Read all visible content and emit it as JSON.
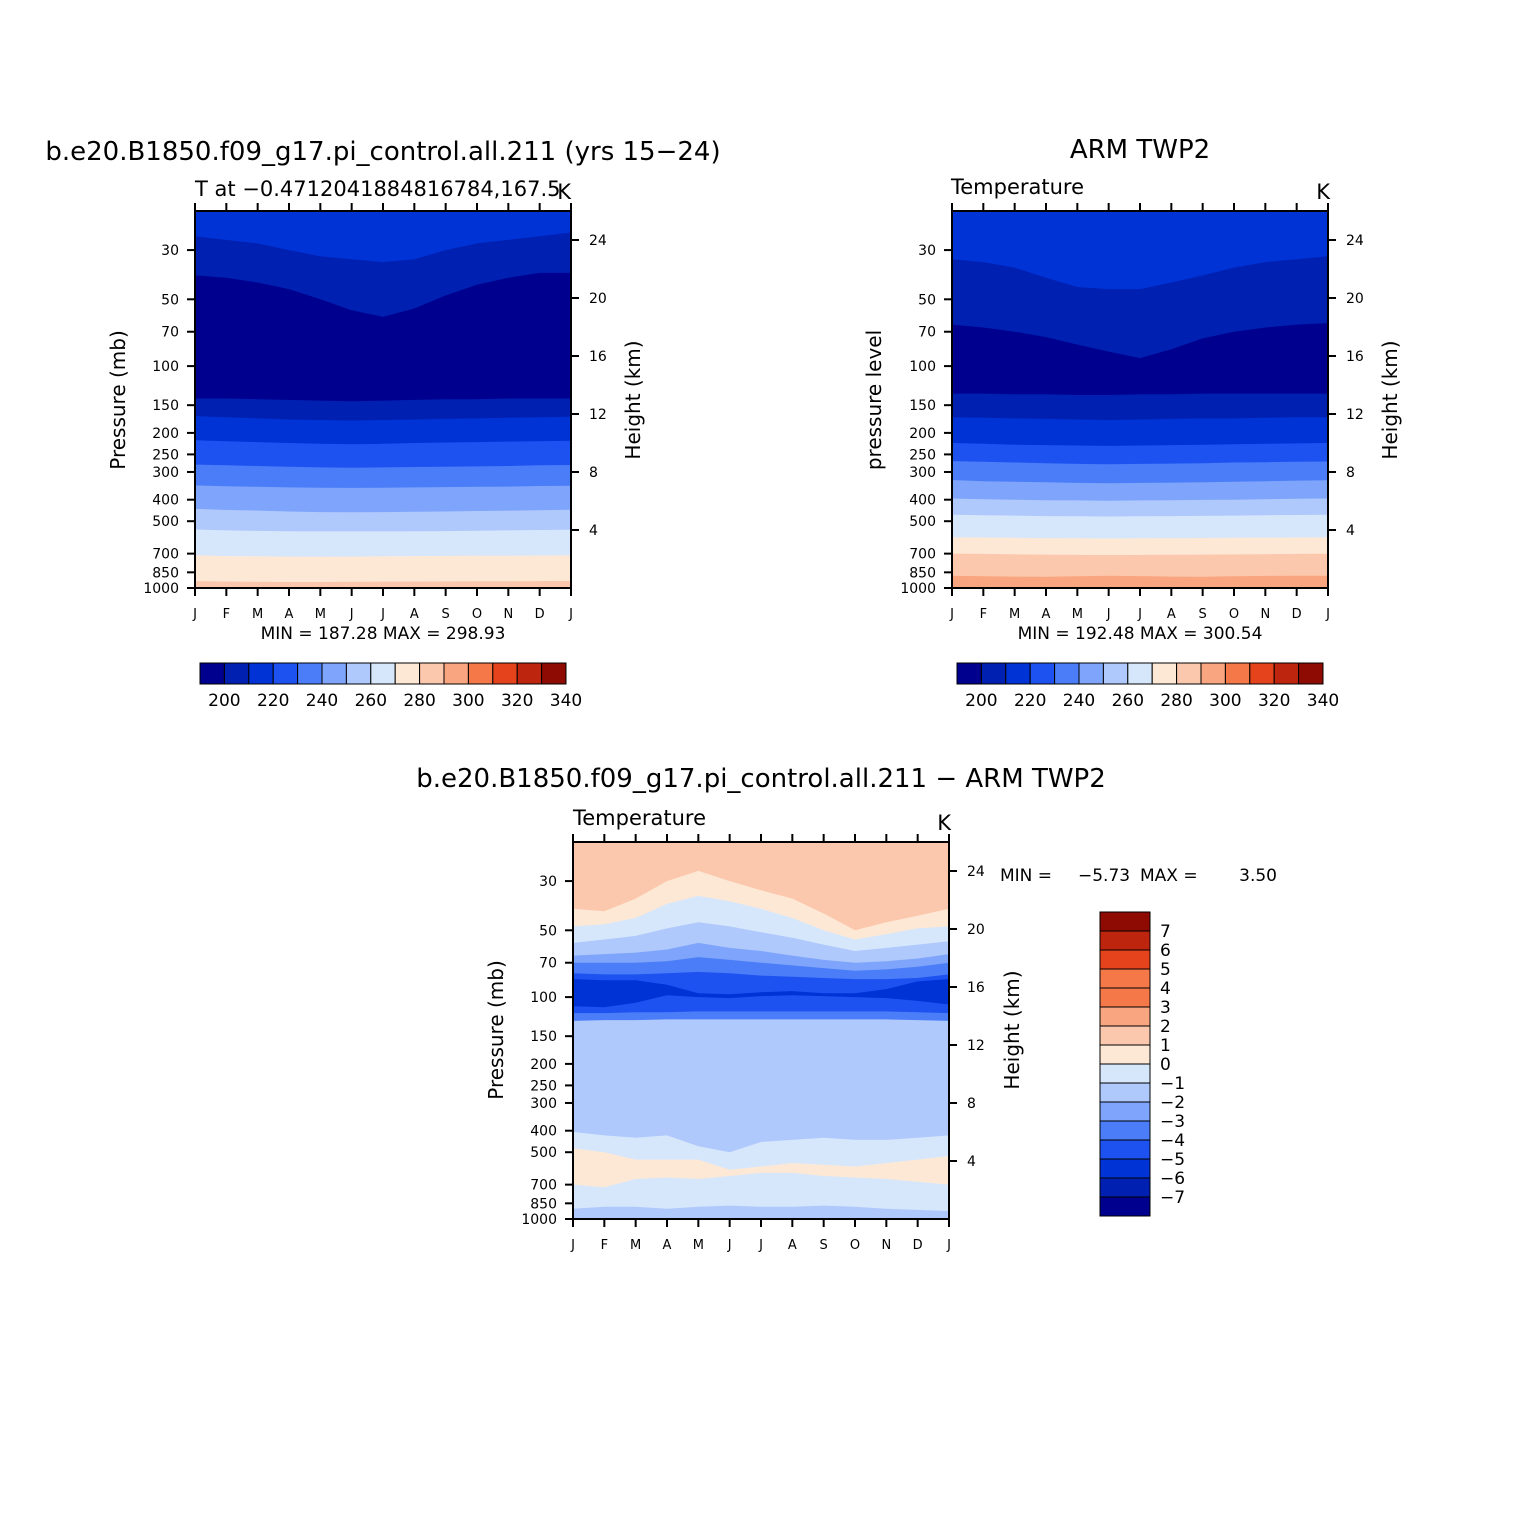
{
  "panels": [
    {
      "id": "model",
      "title": "b.e20.B1850.f09_g17.pi_control.all.211 (yrs 15−24)",
      "subtitle_left": "T at −0.4712041884816784,167.5",
      "subtitle_right": "K",
      "ylabel_left": "Pressure (mb)",
      "ylabel_right": "Height (km)",
      "stats": "MIN =  187.28 MAX =  298.93"
    },
    {
      "id": "obs",
      "title": "ARM TWP2",
      "subtitle_left": "Temperature",
      "subtitle_right": "K",
      "ylabel_left": "pressure level",
      "ylabel_right": "Height (km)",
      "stats": "MIN =  192.48 MAX =  300.54"
    },
    {
      "id": "diff",
      "title": "b.e20.B1850.f09_g17.pi_control.all.211  −  ARM TWP2",
      "subtitle_left": "Temperature",
      "subtitle_right": "K",
      "ylabel_left": "Pressure (mb)",
      "ylabel_right": "Height (km)",
      "stats_min_label": "MIN =",
      "stats_min_value": "−5.73",
      "stats_max_label": "MAX =",
      "stats_max_value": "3.50"
    }
  ],
  "colorbars": {
    "temperature": {
      "labels": [
        "200",
        "220",
        "240",
        "260",
        "280",
        "300",
        "320",
        "340"
      ],
      "colors": [
        "#00008e",
        "#0020b2",
        "#0033d6",
        "#1e52f0",
        "#4a7df7",
        "#7ea5fb",
        "#b0c9fc",
        "#d6e7fb",
        "#fde8d6",
        "#fcc8ad",
        "#f9a57f",
        "#f57849",
        "#e4431b",
        "#bd250e",
        "#8e0b04"
      ]
    },
    "difference": {
      "labels": [
        "7",
        "6",
        "5",
        "4",
        "3",
        "2",
        "1",
        "0",
        "−1",
        "−2",
        "−3",
        "−4",
        "−5",
        "−6",
        "−7"
      ],
      "colors_top_to_bottom": [
        "#8e0b04",
        "#bd250e",
        "#e4431b",
        "#f57849",
        "#f57849",
        "#f9a57f",
        "#fcc8ad",
        "#fde8d6",
        "#d6e7fb",
        "#b0c9fc",
        "#7ea5fb",
        "#4a7df7",
        "#1e52f0",
        "#0033d6",
        "#0020b2",
        "#00008e"
      ]
    }
  },
  "chart_data": [
    {
      "type": "heatmap",
      "title": "b.e20.B1850.f09_g17.pi_control.all.211 (yrs 15−24)",
      "subtitle": "T at −0.4712041884816784,167.5",
      "units": "K",
      "x_ticks": [
        "J",
        "F",
        "M",
        "A",
        "M",
        "J",
        "J",
        "A",
        "S",
        "O",
        "N",
        "D",
        "J"
      ],
      "y_ticks": [
        "30",
        "50",
        "70",
        "100",
        "150",
        "200",
        "250",
        "300",
        "400",
        "500",
        "700",
        "850",
        "1000"
      ],
      "y2_ticks": [
        "24",
        "20",
        "16",
        "12",
        "8",
        "4"
      ],
      "xlabel": "",
      "ylabel": "Pressure (mb)",
      "y2label": "Height (km)",
      "ylim": [
        20,
        1000
      ],
      "y2lim": [
        0,
        26
      ],
      "contour_levels": [
        190,
        200,
        210,
        220,
        230,
        240,
        250,
        260,
        270,
        280,
        290,
        300
      ],
      "min": 187.28,
      "max": 298.93,
      "boundaries_hpa": [
        {
          "upper": "#0033d6",
          "lower": "#0020b2",
          "p": [
            26,
            27,
            28,
            30,
            32,
            33,
            34,
            33,
            30,
            28,
            27,
            26,
            25
          ]
        },
        {
          "upper": "#0020b2",
          "lower": "#00008e",
          "p": [
            39,
            40,
            42,
            45,
            50,
            56,
            60,
            55,
            48,
            43,
            40,
            38,
            38
          ]
        },
        {
          "upper": "#00008e",
          "lower": "#0020b2",
          "p": [
            140,
            140,
            141,
            142,
            143,
            144,
            143,
            142,
            141,
            141,
            140,
            140,
            140
          ]
        },
        {
          "upper": "#0020b2",
          "lower": "#0033d6",
          "p": [
            168,
            170,
            172,
            174,
            175,
            176,
            175,
            174,
            173,
            172,
            171,
            170,
            169
          ]
        },
        {
          "upper": "#0033d6",
          "lower": "#1e52f0",
          "p": [
            216,
            218,
            220,
            222,
            224,
            225,
            224,
            222,
            221,
            220,
            219,
            218,
            217
          ]
        },
        {
          "upper": "#1e52f0",
          "lower": "#4a7df7",
          "p": [
            278,
            280,
            282,
            284,
            286,
            287,
            286,
            285,
            284,
            283,
            282,
            280,
            279
          ]
        },
        {
          "upper": "#4a7df7",
          "lower": "#7ea5fb",
          "p": [
            345,
            348,
            350,
            352,
            353,
            354,
            353,
            352,
            351,
            350,
            349,
            347,
            346
          ]
        },
        {
          "upper": "#7ea5fb",
          "lower": "#b0c9fc",
          "p": [
            440,
            445,
            448,
            452,
            455,
            456,
            455,
            453,
            452,
            450,
            448,
            446,
            444
          ]
        },
        {
          "upper": "#b0c9fc",
          "lower": "#d6e7fb",
          "p": [
            545,
            550,
            553,
            555,
            556,
            556,
            556,
            555,
            554,
            552,
            550,
            548,
            546
          ]
        },
        {
          "upper": "#d6e7fb",
          "lower": "#fde8d6",
          "p": [
            712,
            718,
            720,
            722,
            723,
            722,
            720,
            718,
            717,
            716,
            715,
            714,
            713
          ]
        },
        {
          "upper": "#fde8d6",
          "lower": "#fcc8ad",
          "p": [
            930,
            935,
            938,
            940,
            940,
            938,
            936,
            935,
            934,
            933,
            932,
            931,
            930
          ]
        },
        {
          "upper": "#fcc8ad",
          "lower": "#f9a57f",
          "p": [
            995,
            996,
            997,
            998,
            998,
            998,
            997,
            996,
            996,
            995,
            995,
            995,
            995
          ]
        }
      ]
    },
    {
      "type": "heatmap",
      "title": "ARM TWP2",
      "subtitle": "Temperature",
      "units": "K",
      "x_ticks": [
        "J",
        "F",
        "M",
        "A",
        "M",
        "J",
        "J",
        "A",
        "S",
        "O",
        "N",
        "D",
        "J"
      ],
      "y_ticks": [
        "30",
        "50",
        "70",
        "100",
        "150",
        "200",
        "250",
        "300",
        "400",
        "500",
        "700",
        "850",
        "1000"
      ],
      "y2_ticks": [
        "24",
        "20",
        "16",
        "12",
        "8",
        "4"
      ],
      "xlabel": "",
      "ylabel": "pressure level",
      "y2label": "Height (km)",
      "ylim": [
        20,
        1000
      ],
      "y2lim": [
        0,
        26
      ],
      "contour_levels": [
        190,
        200,
        210,
        220,
        230,
        240,
        250,
        260,
        270,
        280,
        290,
        300
      ],
      "min": 192.48,
      "max": 300.54,
      "boundaries_hpa": [
        {
          "upper": "#0033d6",
          "lower": "#0020b2",
          "p": [
            33,
            34,
            36,
            40,
            44,
            45,
            45,
            42,
            39,
            36,
            34,
            33,
            32
          ]
        },
        {
          "upper": "#0020b2",
          "lower": "#00008e",
          "p": [
            65,
            67,
            70,
            74,
            80,
            86,
            92,
            84,
            75,
            70,
            67,
            65,
            64
          ]
        },
        {
          "upper": "#00008e",
          "lower": "#0020b2",
          "p": [
            133,
            133,
            134,
            134,
            135,
            135,
            134,
            134,
            133,
            133,
            133,
            133,
            133
          ]
        },
        {
          "upper": "#0020b2",
          "lower": "#0033d6",
          "p": [
            170,
            171,
            172,
            173,
            174,
            175,
            174,
            173,
            172,
            172,
            171,
            170,
            170
          ]
        },
        {
          "upper": "#0033d6",
          "lower": "#1e52f0",
          "p": [
            222,
            224,
            226,
            227,
            228,
            229,
            228,
            227,
            226,
            225,
            224,
            223,
            222
          ]
        },
        {
          "upper": "#1e52f0",
          "lower": "#4a7df7",
          "p": [
            268,
            270,
            272,
            274,
            276,
            277,
            276,
            275,
            274,
            272,
            271,
            270,
            269
          ]
        },
        {
          "upper": "#4a7df7",
          "lower": "#7ea5fb",
          "p": [
            326,
            330,
            332,
            334,
            336,
            337,
            336,
            335,
            334,
            332,
            330,
            328,
            327
          ]
        },
        {
          "upper": "#7ea5fb",
          "lower": "#b0c9fc",
          "p": [
            395,
            398,
            400,
            402,
            403,
            404,
            403,
            402,
            401,
            400,
            398,
            396,
            395
          ]
        },
        {
          "upper": "#b0c9fc",
          "lower": "#d6e7fb",
          "p": [
            468,
            470,
            472,
            474,
            475,
            476,
            475,
            474,
            473,
            472,
            470,
            469,
            468
          ]
        },
        {
          "upper": "#d6e7fb",
          "lower": "#fde8d6",
          "p": [
            590,
            592,
            594,
            596,
            597,
            598,
            597,
            596,
            595,
            594,
            593,
            592,
            591
          ]
        },
        {
          "upper": "#fde8d6",
          "lower": "#fcc8ad",
          "p": [
            700,
            702,
            705,
            707,
            709,
            710,
            709,
            708,
            707,
            706,
            704,
            702,
            701
          ]
        },
        {
          "upper": "#fcc8ad",
          "lower": "#f9a57f",
          "p": [
            880,
            885,
            888,
            890,
            885,
            880,
            884,
            888,
            890,
            885,
            882,
            880,
            880
          ]
        }
      ]
    },
    {
      "type": "heatmap",
      "title": "b.e20.B1850.f09_g17.pi_control.all.211  −  ARM TWP2",
      "subtitle": "Temperature",
      "units": "K",
      "x_ticks": [
        "J",
        "F",
        "M",
        "A",
        "M",
        "J",
        "J",
        "A",
        "S",
        "O",
        "N",
        "D",
        "J"
      ],
      "y_ticks": [
        "30",
        "50",
        "70",
        "100",
        "150",
        "200",
        "250",
        "300",
        "400",
        "500",
        "700",
        "850",
        "1000"
      ],
      "y2_ticks": [
        "24",
        "20",
        "16",
        "12",
        "8",
        "4"
      ],
      "xlabel": "",
      "ylabel": "Pressure (mb)",
      "y2label": "Height (km)",
      "ylim": [
        20,
        1000
      ],
      "y2lim": [
        0,
        26
      ],
      "contour_levels": [
        -7,
        -6,
        -5,
        -4,
        -3,
        -2,
        -1,
        0,
        1,
        2,
        3,
        4,
        5,
        6,
        7
      ],
      "min": -5.73,
      "max": 3.5,
      "boundaries_hpa": [
        {
          "upper": "#fcc8ad",
          "lower": "#fde8d6",
          "p": [
            40,
            41,
            36,
            30,
            27,
            30,
            33,
            36,
            42,
            50,
            46,
            43,
            40
          ]
        },
        {
          "upper": "#fde8d6",
          "lower": "#d6e7fb",
          "p": [
            48,
            47,
            44,
            38,
            35,
            37,
            40,
            44,
            50,
            55,
            52,
            49,
            48
          ]
        },
        {
          "upper": "#d6e7fb",
          "lower": "#b0c9fc",
          "p": [
            57,
            55,
            53,
            49,
            46,
            48,
            51,
            54,
            58,
            62,
            60,
            58,
            56
          ]
        },
        {
          "upper": "#b0c9fc",
          "lower": "#7ea5fb",
          "p": [
            65,
            64,
            63,
            61,
            57,
            60,
            62,
            65,
            68,
            70,
            69,
            67,
            64
          ]
        },
        {
          "upper": "#7ea5fb",
          "lower": "#4a7df7",
          "p": [
            70,
            70,
            70,
            69,
            66,
            68,
            70,
            72,
            74,
            76,
            75,
            73,
            70
          ]
        },
        {
          "upper": "#4a7df7",
          "lower": "#1e52f0",
          "p": [
            78,
            79,
            79,
            78,
            77,
            78,
            80,
            81,
            82,
            83,
            83,
            82,
            79
          ]
        },
        {
          "upper": "#1e52f0",
          "lower": "#0033d6",
          "p": [
            83,
            84,
            84,
            88,
            96,
            97,
            95,
            94,
            96,
            96,
            92,
            85,
            83
          ]
        },
        {
          "upper": "#0033d6",
          "lower": "#1e52f0",
          "p": [
            110,
            111,
            106,
            98,
            100,
            101,
            99,
            98,
            99,
            100,
            101,
            104,
            108
          ]
        },
        {
          "upper": "#1e52f0",
          "lower": "#4a7df7",
          "p": [
            118,
            118,
            117,
            117,
            116,
            116,
            116,
            116,
            116,
            116,
            116,
            117,
            118
          ]
        },
        {
          "upper": "#4a7df7",
          "lower": "#b0c9fc",
          "p": [
            128,
            127,
            127,
            126,
            126,
            126,
            126,
            126,
            126,
            126,
            126,
            127,
            128
          ]
        },
        {
          "upper": "#b0c9fc",
          "lower": "#d6e7fb",
          "p": [
            405,
            420,
            430,
            420,
            470,
            500,
            450,
            440,
            430,
            440,
            440,
            430,
            420
          ]
        },
        {
          "upper": "#d6e7fb",
          "lower": "#fde8d6",
          "p": [
            480,
            500,
            540,
            540,
            540,
            600,
            580,
            560,
            570,
            580,
            560,
            540,
            520
          ]
        },
        {
          "upper": "#fde8d6",
          "lower": "#d6e7fb",
          "p": [
            700,
            720,
            660,
            650,
            660,
            640,
            620,
            620,
            640,
            650,
            660,
            680,
            700
          ]
        },
        {
          "upper": "#d6e7fb",
          "lower": "#b0c9fc",
          "p": [
            900,
            880,
            880,
            900,
            880,
            870,
            880,
            880,
            870,
            880,
            900,
            910,
            920
          ]
        }
      ]
    }
  ]
}
